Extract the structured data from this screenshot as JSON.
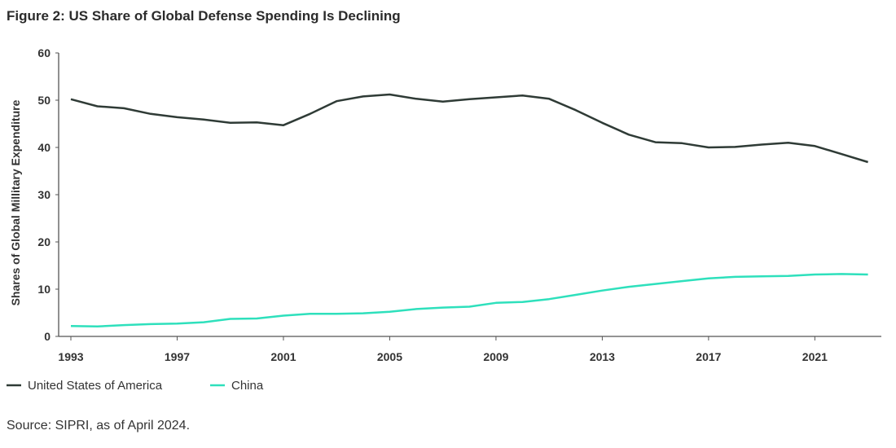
{
  "title": "Figure 2: US Share of Global Defense Spending Is Declining",
  "source": "Source: SIPRI, as of April 2024.",
  "chart_data": {
    "type": "line",
    "title": "Figure 2: US Share of Global Defense Spending Is Declining",
    "xlabel": "",
    "ylabel": "Shares of Global Millitary Expenditure",
    "ylim": [
      0,
      60
    ],
    "yticks": [
      0,
      10,
      20,
      30,
      40,
      50,
      60
    ],
    "xticks": [
      1993,
      1997,
      2001,
      2005,
      2009,
      2013,
      2017,
      2021
    ],
    "grid": false,
    "legend": "bottom-left",
    "x": [
      1993,
      1994,
      1995,
      1996,
      1997,
      1998,
      1999,
      2000,
      2001,
      2002,
      2003,
      2004,
      2005,
      2006,
      2007,
      2008,
      2009,
      2010,
      2011,
      2012,
      2013,
      2014,
      2015,
      2016,
      2017,
      2018,
      2019,
      2020,
      2021,
      2022,
      2023
    ],
    "series": [
      {
        "name": "United States of America",
        "color": "#2f3b36",
        "values": [
          50.2,
          48.7,
          48.3,
          47.1,
          46.4,
          45.9,
          45.2,
          45.3,
          44.7,
          47.1,
          49.8,
          50.8,
          51.2,
          50.3,
          49.7,
          50.2,
          50.6,
          51.0,
          50.3,
          47.9,
          45.2,
          42.7,
          41.1,
          40.9,
          40.0,
          40.1,
          40.6,
          41.0,
          40.3,
          38.6,
          36.9
        ]
      },
      {
        "name": "China",
        "color": "#2ee0bc",
        "values": [
          2.2,
          2.1,
          2.4,
          2.6,
          2.7,
          3.0,
          3.7,
          3.8,
          4.4,
          4.8,
          4.8,
          4.9,
          5.2,
          5.8,
          6.1,
          6.3,
          7.1,
          7.3,
          7.9,
          8.8,
          9.7,
          10.5,
          11.1,
          11.7,
          12.3,
          12.6,
          12.7,
          12.8,
          13.1,
          13.2,
          13.1
        ]
      }
    ]
  }
}
